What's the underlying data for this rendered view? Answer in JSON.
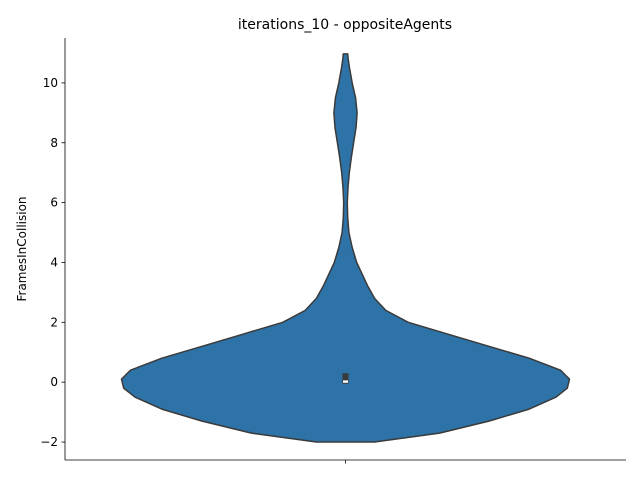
{
  "chart_data": {
    "type": "violin",
    "title": "iterations_10 - oppositeAgents",
    "xlabel": "",
    "ylabel": "FramesInCollision",
    "ylim": [
      -2.6,
      11.5
    ],
    "yticks": [
      -2,
      0,
      2,
      4,
      6,
      8,
      10
    ],
    "ytick_labels": [
      "−2",
      "0",
      "2",
      "4",
      "6",
      "8",
      "10"
    ],
    "categories": [
      ""
    ],
    "violin_color": "#2e73a8",
    "edge_color": "#3a3a3a",
    "box_color": "#3a3a3a",
    "median_color": "#ffffff",
    "density_profile": [
      {
        "y": -2.0,
        "w": 0.13
      },
      {
        "y": -1.7,
        "w": 0.42
      },
      {
        "y": -1.3,
        "w": 0.64
      },
      {
        "y": -0.9,
        "w": 0.82
      },
      {
        "y": -0.5,
        "w": 0.94
      },
      {
        "y": -0.2,
        "w": 0.99
      },
      {
        "y": 0.1,
        "w": 1.0
      },
      {
        "y": 0.4,
        "w": 0.96
      },
      {
        "y": 0.8,
        "w": 0.82
      },
      {
        "y": 1.2,
        "w": 0.64
      },
      {
        "y": 1.6,
        "w": 0.46
      },
      {
        "y": 2.0,
        "w": 0.28
      },
      {
        "y": 2.4,
        "w": 0.18
      },
      {
        "y": 2.8,
        "w": 0.13
      },
      {
        "y": 3.2,
        "w": 0.1
      },
      {
        "y": 3.6,
        "w": 0.075
      },
      {
        "y": 4.0,
        "w": 0.05
      },
      {
        "y": 4.5,
        "w": 0.03
      },
      {
        "y": 5.0,
        "w": 0.015
      },
      {
        "y": 5.5,
        "w": 0.01
      },
      {
        "y": 6.0,
        "w": 0.008
      },
      {
        "y": 6.5,
        "w": 0.011
      },
      {
        "y": 7.0,
        "w": 0.017
      },
      {
        "y": 7.5,
        "w": 0.026
      },
      {
        "y": 8.0,
        "w": 0.036
      },
      {
        "y": 8.5,
        "w": 0.047
      },
      {
        "y": 9.0,
        "w": 0.052
      },
      {
        "y": 9.5,
        "w": 0.045
      },
      {
        "y": 10.0,
        "w": 0.03
      },
      {
        "y": 10.5,
        "w": 0.018
      },
      {
        "y": 10.8,
        "w": 0.012
      },
      {
        "y": 10.97,
        "w": 0.01
      }
    ],
    "box": {
      "q1": -0.05,
      "q3": 0.3,
      "whisker_low": -0.05,
      "whisker_high": 0.3,
      "median": 0.02
    }
  }
}
